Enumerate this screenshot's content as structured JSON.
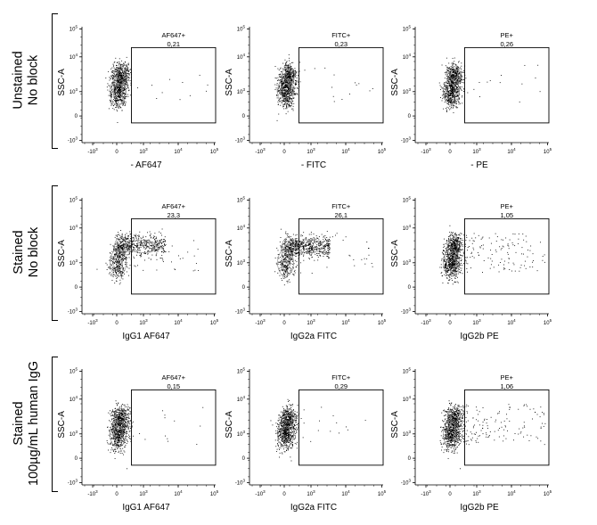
{
  "rows": [
    {
      "line1": "Unstained",
      "line2": "No block"
    },
    {
      "line1": "Stained",
      "line2": "No block"
    },
    {
      "line1": "Stained",
      "line2": "100µg/mL human IgG"
    }
  ],
  "chart_data": [
    {
      "type": "scatter",
      "ylabel": "SSC-A",
      "xlabel": "- AF647",
      "gate": {
        "name": "AF647+",
        "value": "0,21"
      },
      "dist": "neg"
    },
    {
      "type": "scatter",
      "ylabel": "SSC-A",
      "xlabel": "- FITC",
      "gate": {
        "name": "FITC+",
        "value": "0,23"
      },
      "dist": "neg"
    },
    {
      "type": "scatter",
      "ylabel": "SSC-A",
      "xlabel": "- PE",
      "gate": {
        "name": "PE+",
        "value": "0,26"
      },
      "dist": "neg"
    },
    {
      "type": "scatter",
      "ylabel": "SSC-A",
      "xlabel": "IgG1 AF647",
      "gate": {
        "name": "AF647+",
        "value": "23,3"
      },
      "dist": "shiftA"
    },
    {
      "type": "scatter",
      "ylabel": "SSC-A",
      "xlabel": "IgG2a FITC",
      "gate": {
        "name": "FITC+",
        "value": "26,1"
      },
      "dist": "shiftF"
    },
    {
      "type": "scatter",
      "ylabel": "SSC-A",
      "xlabel": "IgG2b PE",
      "gate": {
        "name": "PE+",
        "value": "1,05"
      },
      "dist": "spread"
    },
    {
      "type": "scatter",
      "ylabel": "SSC-A",
      "xlabel": "IgG1 AF647",
      "gate": {
        "name": "AF647+",
        "value": "0,15"
      },
      "dist": "neg"
    },
    {
      "type": "scatter",
      "ylabel": "SSC-A",
      "xlabel": "IgG2a FITC",
      "gate": {
        "name": "FITC+",
        "value": "0,29"
      },
      "dist": "neg"
    },
    {
      "type": "scatter",
      "ylabel": "SSC-A",
      "xlabel": "IgG2b PE",
      "gate": {
        "name": "PE+",
        "value": "1,06"
      },
      "dist": "spread"
    }
  ],
  "axes": {
    "x_ticks": [
      "-10",
      "0",
      "10",
      "10",
      "10"
    ],
    "x_ticks_exp": [
      "3",
      "",
      "3",
      "4",
      "5"
    ],
    "y_ticks": [
      "10",
      "10",
      "10",
      "0",
      "-10"
    ],
    "y_ticks_exp": [
      "5",
      "4",
      "3",
      "",
      "3"
    ],
    "scale": "biexponential",
    "range": [
      -1000,
      100000
    ]
  }
}
